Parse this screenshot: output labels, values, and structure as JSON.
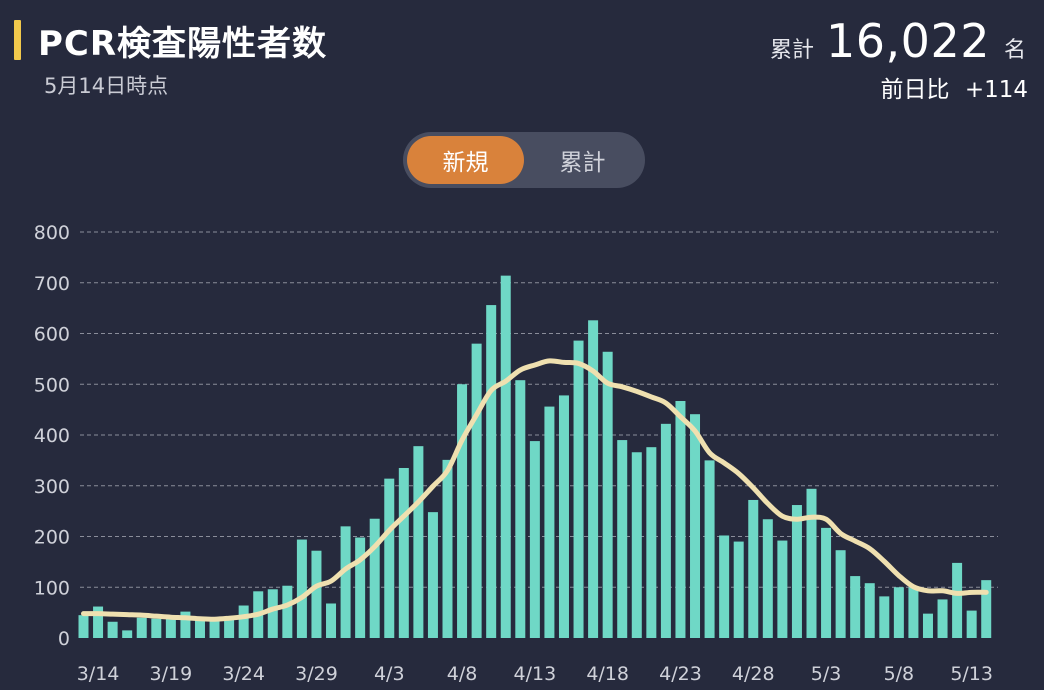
{
  "header": {
    "title": "PCR検査陽性者数",
    "date_label": "5月14日時点",
    "total_label": "累計",
    "total_value": "16,022",
    "total_unit": "名",
    "diff_label": "前日比",
    "diff_value": "+114"
  },
  "toggle": {
    "options": [
      "新規",
      "累計"
    ],
    "selected": "新規"
  },
  "colors": {
    "background": "#262a3d",
    "bar": "#6fd8c6",
    "moving_average": "#efe0b0",
    "accent": "#d9823b",
    "title_accent": "#f2c94c"
  },
  "chart_data": {
    "type": "bar",
    "title": "",
    "xlabel": "",
    "ylabel": "",
    "ylim": [
      0,
      800
    ],
    "yticks": [
      0,
      100,
      200,
      300,
      400,
      500,
      600,
      700,
      800
    ],
    "xtick_labels": [
      "3/14",
      "3/19",
      "3/24",
      "3/29",
      "4/3",
      "4/8",
      "4/13",
      "4/18",
      "4/23",
      "4/28",
      "5/3",
      "5/8",
      "5/13"
    ],
    "xtick_every": 5,
    "grid": true,
    "categories": [
      "3/13",
      "3/14",
      "3/15",
      "3/16",
      "3/17",
      "3/18",
      "3/19",
      "3/20",
      "3/21",
      "3/22",
      "3/23",
      "3/24",
      "3/25",
      "3/26",
      "3/27",
      "3/28",
      "3/29",
      "3/30",
      "3/31",
      "4/1",
      "4/2",
      "4/3",
      "4/4",
      "4/5",
      "4/6",
      "4/7",
      "4/8",
      "4/9",
      "4/10",
      "4/11",
      "4/12",
      "4/13",
      "4/14",
      "4/15",
      "4/16",
      "4/17",
      "4/18",
      "4/19",
      "4/20",
      "4/21",
      "4/22",
      "4/23",
      "4/24",
      "4/25",
      "4/26",
      "4/27",
      "4/28",
      "4/29",
      "4/30",
      "5/1",
      "5/2",
      "5/3",
      "5/4",
      "5/5",
      "5/6",
      "5/7",
      "5/8",
      "5/9",
      "5/10",
      "5/11",
      "5/12",
      "5/13",
      "5/14"
    ],
    "series": [
      {
        "values": [
          45,
          62,
          32,
          15,
          40,
          38,
          44,
          52,
          36,
          38,
          40,
          64,
          92,
          96,
          103,
          194,
          172,
          68,
          220,
          198,
          235,
          314,
          335,
          378,
          248,
          351,
          500,
          580,
          656,
          714,
          508,
          388,
          456,
          478,
          586,
          626,
          564,
          390,
          366,
          376,
          422,
          467,
          441,
          350,
          202,
          190,
          272,
          234,
          192,
          262,
          294,
          217,
          173,
          122,
          108,
          82,
          100,
          100,
          48,
          76,
          148,
          54,
          114
        ]
      },
      {
        "values": [
          48,
          48,
          47,
          46,
          45,
          43,
          41,
          40,
          38,
          37,
          39,
          42,
          47,
          57,
          65,
          80,
          102,
          112,
          136,
          154,
          180,
          212,
          240,
          268,
          299,
          330,
          390,
          440,
          488,
          506,
          528,
          538,
          546,
          543,
          541,
          526,
          502,
          495,
          486,
          475,
          463,
          436,
          408,
          365,
          345,
          324,
          296,
          265,
          240,
          234,
          238,
          234,
          206,
          191,
          176,
          151,
          123,
          101,
          93,
          93,
          88,
          90,
          90
        ]
      }
    ]
  }
}
